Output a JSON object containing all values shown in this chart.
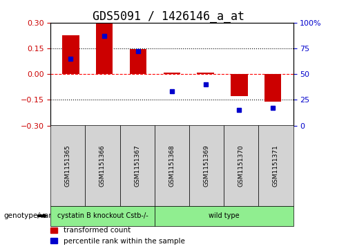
{
  "title": "GDS5091 / 1426146_a_at",
  "samples": [
    "GSM1151365",
    "GSM1151366",
    "GSM1151367",
    "GSM1151368",
    "GSM1151369",
    "GSM1151370",
    "GSM1151371"
  ],
  "bar_values": [
    0.225,
    0.295,
    0.145,
    0.008,
    0.008,
    -0.13,
    -0.16
  ],
  "percentile_values": [
    65,
    87,
    72,
    33,
    40,
    15,
    17
  ],
  "bar_color": "#cc0000",
  "dot_color": "#0000cc",
  "ylim": [
    -0.3,
    0.3
  ],
  "yticks_left": [
    -0.3,
    -0.15,
    0,
    0.15,
    0.3
  ],
  "yticks_right": [
    0,
    25,
    50,
    75,
    100
  ],
  "legend_red_label": "transformed count",
  "legend_blue_label": "percentile rank within the sample",
  "genotype_label": "genotype/variation",
  "background_color": "#ffffff",
  "title_fontsize": 12,
  "axis_left_color": "#cc0000",
  "axis_right_color": "#0000cc",
  "group_boundaries": [
    [
      0,
      3,
      "cystatin B knockout Cstb-/-"
    ],
    [
      3,
      7,
      "wild type"
    ]
  ],
  "group_color": "#90ee90",
  "box_color": "#d3d3d3"
}
